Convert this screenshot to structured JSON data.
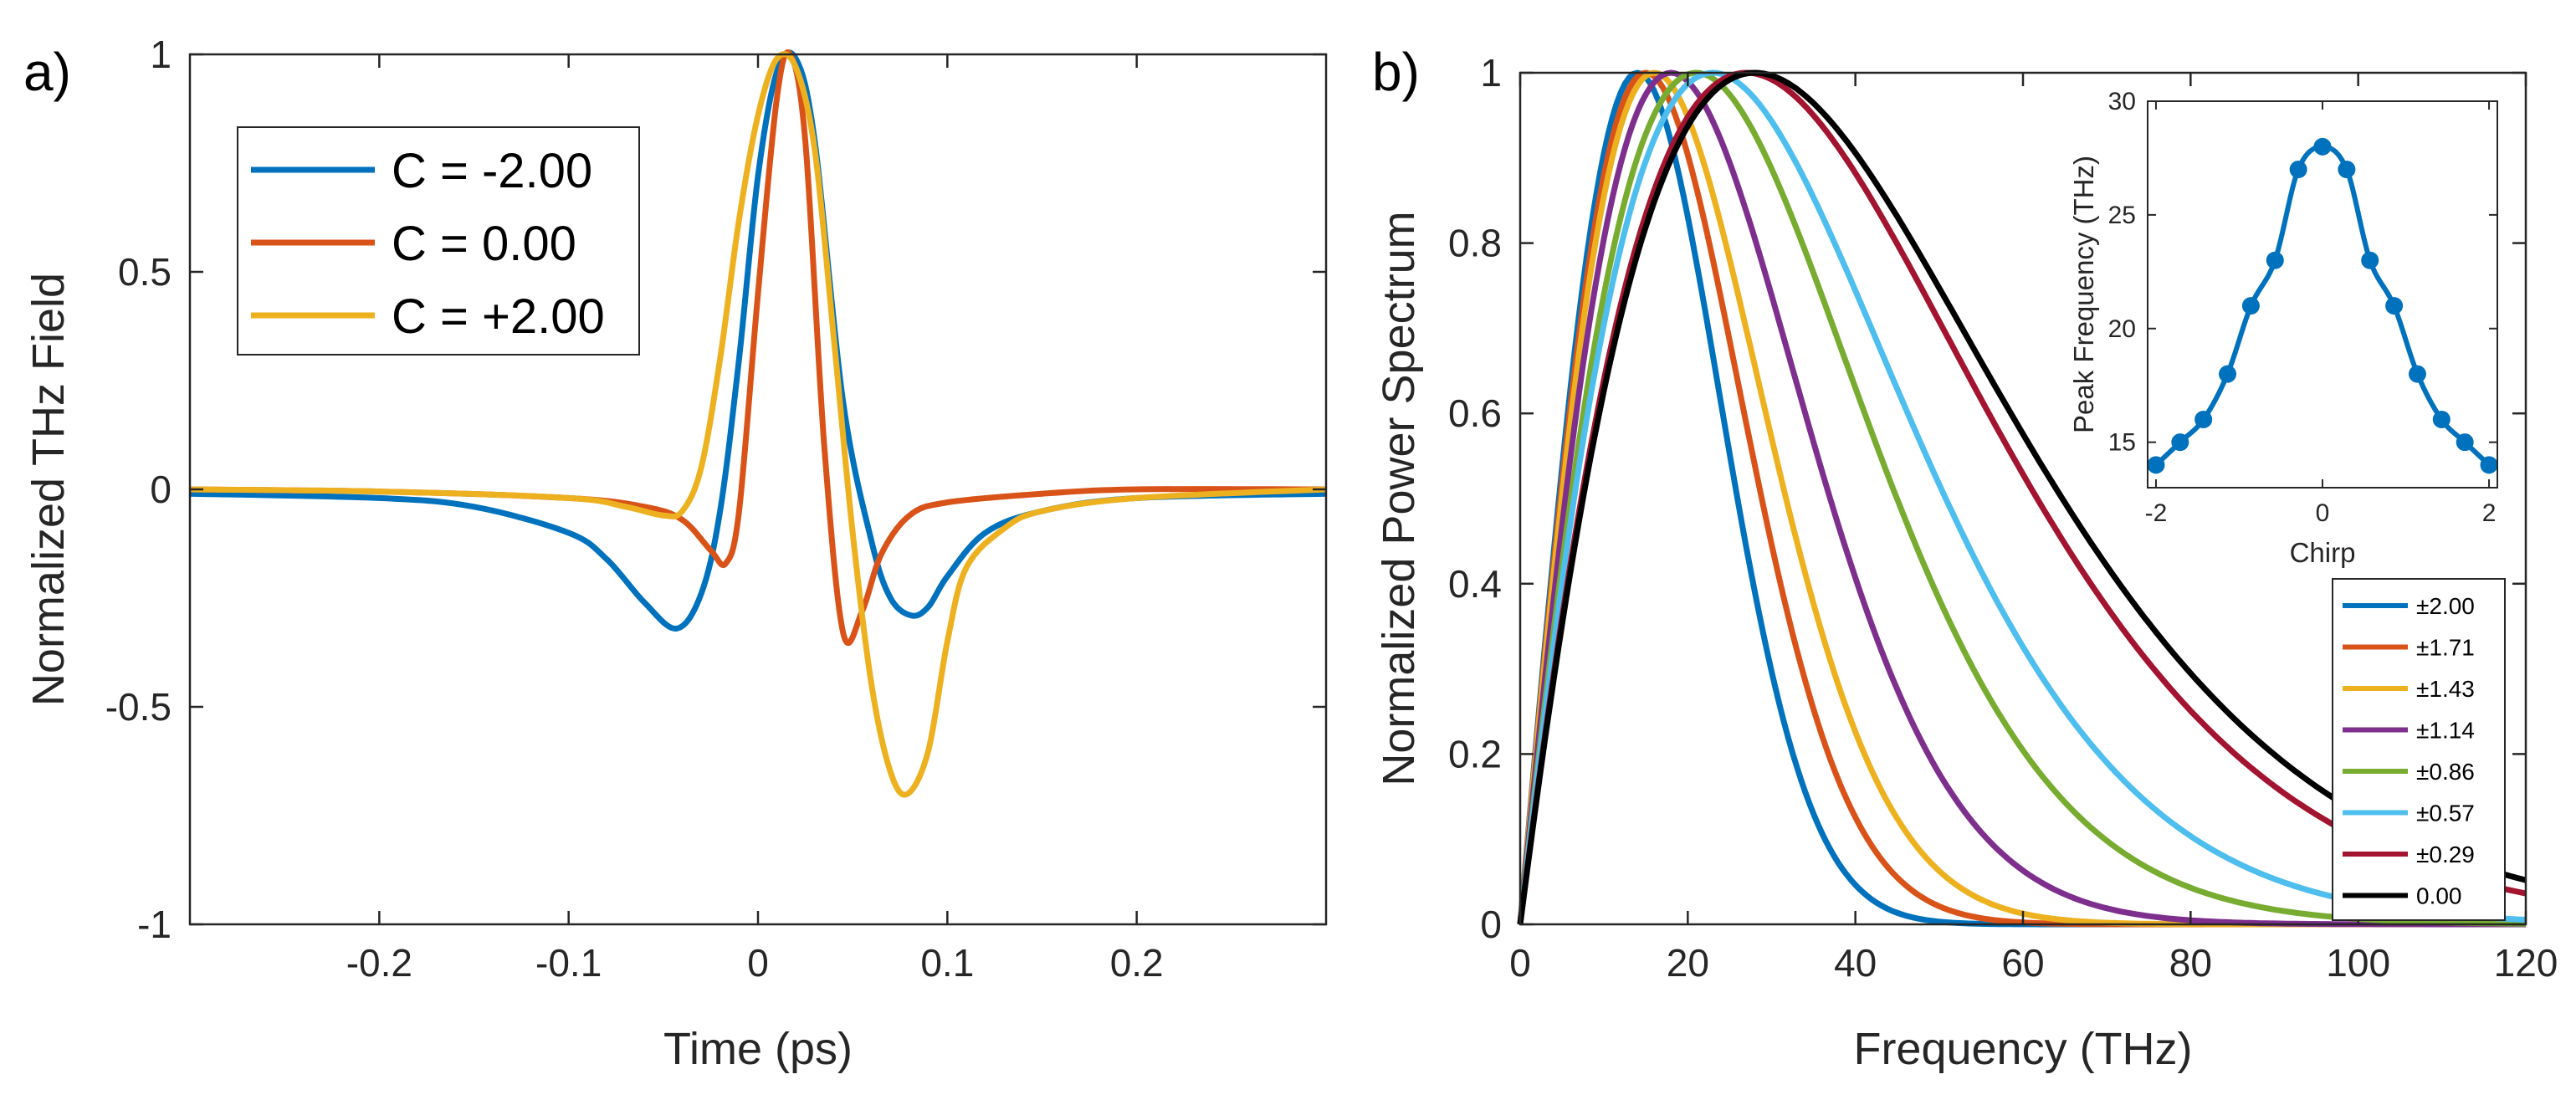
{
  "panel_labels": [
    "a)",
    "b)"
  ],
  "colors": {
    "blue": "#0072BD",
    "orange": "#D95319",
    "yellow": "#EDB120",
    "purple": "#7E2F8E",
    "green": "#77AC30",
    "cyan": "#4DBEEE",
    "red": "#A2142F",
    "black": "#000000"
  },
  "chart_data": [
    {
      "type": "line",
      "panel": "a)",
      "xlabel": "Time (ps)",
      "ylabel": "Normalized THz Field",
      "xlim": [
        -0.3,
        0.3
      ],
      "ylim": [
        -1,
        1
      ],
      "xticks": [
        -0.2,
        -0.1,
        0,
        0.1,
        0.2
      ],
      "xtick_labels": [
        "-0.2",
        "-0.1",
        "0",
        "0.1",
        "0.2"
      ],
      "yticks": [
        -1,
        -0.5,
        0,
        0.5,
        1
      ],
      "ytick_labels": [
        "-1",
        "-0.5",
        "0",
        "0.5",
        "1"
      ],
      "legend_position": "top-left",
      "series": [
        {
          "name": "C = -2.00",
          "color": "#0072BD",
          "x": [
            -0.3,
            -0.2,
            -0.15,
            -0.1,
            -0.08,
            -0.06,
            -0.043,
            -0.03,
            -0.02,
            -0.01,
            0,
            0.01,
            0.02,
            0.03,
            0.045,
            0.06,
            0.07,
            0.081,
            0.09,
            0.1,
            0.12,
            0.15,
            0.2,
            0.3
          ],
          "y": [
            -0.01,
            -0.02,
            -0.04,
            -0.1,
            -0.16,
            -0.26,
            -0.32,
            -0.24,
            -0.05,
            0.3,
            0.72,
            0.96,
            0.99,
            0.8,
            0.2,
            -0.12,
            -0.25,
            -0.29,
            -0.27,
            -0.2,
            -0.1,
            -0.05,
            -0.02,
            -0.01
          ]
        },
        {
          "name": "C = 0.00",
          "color": "#D95319",
          "x": [
            -0.3,
            -0.2,
            -0.1,
            -0.06,
            -0.04,
            -0.025,
            -0.017,
            -0.01,
            0,
            0.01,
            0.017,
            0.025,
            0.035,
            0.045,
            0.055,
            0.065,
            0.08,
            0.1,
            0.15,
            0.2,
            0.3
          ],
          "y": [
            0.0,
            -0.005,
            -0.02,
            -0.04,
            -0.07,
            -0.14,
            -0.17,
            -0.05,
            0.45,
            0.9,
            1.0,
            0.8,
            0.1,
            -0.33,
            -0.28,
            -0.15,
            -0.06,
            -0.03,
            -0.01,
            0.0,
            0.0
          ]
        },
        {
          "name": "C = +2.00",
          "color": "#EDB120",
          "x": [
            -0.3,
            -0.2,
            -0.1,
            -0.07,
            -0.05,
            -0.04,
            -0.03,
            -0.02,
            -0.01,
            0,
            0.01,
            0.02,
            0.03,
            0.04,
            0.05,
            0.06,
            0.07,
            0.079,
            0.09,
            0.1,
            0.11,
            0.13,
            0.15,
            0.2,
            0.3
          ],
          "y": [
            0.0,
            -0.005,
            -0.02,
            -0.04,
            -0.06,
            -0.05,
            0.05,
            0.3,
            0.62,
            0.86,
            0.99,
            0.97,
            0.78,
            0.35,
            -0.1,
            -0.45,
            -0.65,
            -0.7,
            -0.6,
            -0.35,
            -0.18,
            -0.09,
            -0.05,
            -0.02,
            0.0
          ]
        }
      ]
    },
    {
      "type": "line",
      "panel": "b)",
      "xlabel": "Frequency (THz)",
      "ylabel": "Normalized Power Spectrum",
      "xlim": [
        0,
        120
      ],
      "ylim": [
        0,
        1
      ],
      "xticks": [
        0,
        20,
        40,
        60,
        80,
        100,
        120
      ],
      "xtick_labels": [
        "0",
        "20",
        "40",
        "60",
        "80",
        "100",
        "120"
      ],
      "yticks": [
        0,
        0.2,
        0.4,
        0.6,
        0.8,
        1
      ],
      "ytick_labels": [
        "0",
        "0.2",
        "0.4",
        "0.6",
        "0.8",
        "1"
      ],
      "legend_position": "bottom-right",
      "series": [
        {
          "name": "±2.00",
          "color": "#0072BD",
          "peak_frequency": 14,
          "decay_order": 2.2
        },
        {
          "name": "±1.71",
          "color": "#D95319",
          "peak_frequency": 15,
          "decay_order": 2.0
        },
        {
          "name": "±1.43",
          "color": "#EDB120",
          "peak_frequency": 16,
          "decay_order": 1.85
        },
        {
          "name": "±1.14",
          "color": "#7E2F8E",
          "peak_frequency": 18,
          "decay_order": 1.7
        },
        {
          "name": "±0.86",
          "color": "#77AC30",
          "peak_frequency": 21,
          "decay_order": 1.55
        },
        {
          "name": "±0.57",
          "color": "#4DBEEE",
          "peak_frequency": 23,
          "decay_order": 1.45
        },
        {
          "name": "±0.29",
          "color": "#A2142F",
          "peak_frequency": 27,
          "decay_order": 1.35
        },
        {
          "name": "0.00",
          "color": "#000000",
          "peak_frequency": 28,
          "decay_order": 1.32
        }
      ],
      "inset": {
        "type": "line",
        "xlabel": "Chirp",
        "ylabel": "Peak Frequency (THz)",
        "xlim": [
          -2.1,
          2.1
        ],
        "ylim": [
          13,
          30
        ],
        "xticks": [
          -2,
          0,
          2
        ],
        "xtick_labels": [
          "-2",
          "0",
          "2"
        ],
        "yticks": [
          15,
          20,
          25,
          30
        ],
        "ytick_labels": [
          "15",
          "20",
          "25",
          "30"
        ],
        "color": "#0072BD",
        "x": [
          -2.0,
          -1.71,
          -1.43,
          -1.14,
          -0.86,
          -0.57,
          -0.29,
          0.0,
          0.29,
          0.57,
          0.86,
          1.14,
          1.43,
          1.71,
          2.0
        ],
        "y": [
          14,
          15,
          16,
          18,
          21,
          23,
          27,
          28,
          27,
          23,
          21,
          18,
          16,
          15,
          14
        ]
      }
    }
  ]
}
